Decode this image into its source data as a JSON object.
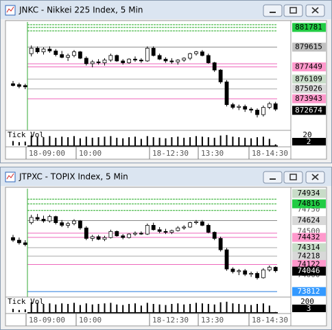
{
  "windows": [
    {
      "title": "JNKC - Nikkei 225 Index, 5 Min",
      "ylim": [
        870475,
        882535
      ],
      "lines": [
        {
          "value": 882080,
          "color": "#22aa22"
        },
        {
          "value": 881781,
          "color": "#22aa22"
        },
        {
          "value": 881400,
          "color": "#22aa22"
        },
        {
          "value": 879615,
          "color": "#888888"
        },
        {
          "value": 877787,
          "color": "#ee66bb"
        },
        {
          "value": 877449,
          "color": "#ee66bb"
        },
        {
          "value": 876109,
          "color": "#aaaaaa"
        },
        {
          "value": 875026,
          "color": "#aaaaaa"
        },
        {
          "value": 873943,
          "color": "#ee66bb"
        }
      ],
      "price_labels": [
        {
          "value": 881781,
          "bg": "#22cc44",
          "fg": "#000000"
        },
        {
          "value": 879615,
          "bg": "#c0c0c0",
          "fg": "#000000"
        },
        {
          "value": 877449,
          "bg": "#ff99cc",
          "fg": "#000000"
        },
        {
          "value": 876109,
          "bg": "#c8dcc8",
          "fg": "#000000"
        },
        {
          "value": 875026,
          "bg": "#d8d8d8",
          "fg": "#000000"
        },
        {
          "value": 873943,
          "bg": "#ff99cc",
          "fg": "#000000"
        },
        {
          "value": 872674,
          "bg": "#000000",
          "fg": "#ffffff"
        }
      ],
      "hidden_labels": [],
      "candles": [
        [
          875600,
          875900,
          875300,
          875400
        ],
        [
          875500,
          875700,
          875100,
          875300
        ],
        [
          875400,
          875600,
          875000,
          875250
        ],
        [
          878900,
          879800,
          878600,
          879500
        ],
        [
          879500,
          879700,
          878900,
          879100
        ],
        [
          879100,
          879600,
          878800,
          879400
        ],
        [
          879400,
          879700,
          879000,
          879200
        ],
        [
          879200,
          879400,
          878600,
          878800
        ],
        [
          878800,
          879200,
          878400,
          878500
        ],
        [
          878500,
          878900,
          878100,
          878700
        ],
        [
          878700,
          879300,
          878500,
          879100
        ],
        [
          879100,
          879200,
          878300,
          878400
        ],
        [
          878400,
          878600,
          877600,
          877800
        ],
        [
          877800,
          878200,
          877400,
          878000
        ],
        [
          878000,
          878300,
          877700,
          877900
        ],
        [
          877900,
          878400,
          877600,
          878200
        ],
        [
          878200,
          878900,
          878000,
          878700
        ],
        [
          878700,
          878800,
          878000,
          878100
        ],
        [
          878100,
          878300,
          877700,
          877900
        ],
        [
          877900,
          878400,
          877800,
          878300
        ],
        [
          878300,
          878600,
          878000,
          878200
        ],
        [
          878200,
          878400,
          877900,
          878100
        ],
        [
          878100,
          879700,
          878000,
          879500
        ],
        [
          879500,
          879700,
          878600,
          878700
        ],
        [
          878700,
          878900,
          878200,
          878300
        ],
        [
          878300,
          878500,
          877900,
          878100
        ],
        [
          878100,
          878400,
          877800,
          878000
        ],
        [
          878000,
          878300,
          877700,
          878200
        ],
        [
          878200,
          878500,
          878000,
          878400
        ],
        [
          878400,
          879000,
          878200,
          878900
        ],
        [
          878900,
          879200,
          878700,
          879100
        ],
        [
          879100,
          879300,
          878600,
          878700
        ],
        [
          878700,
          878900,
          877800,
          877900
        ],
        [
          877900,
          878000,
          876900,
          877100
        ],
        [
          877100,
          877200,
          875600,
          875800
        ],
        [
          875800,
          876000,
          873100,
          873300
        ],
        [
          873300,
          873500,
          872800,
          873000
        ],
        [
          873000,
          873300,
          872700,
          873100
        ],
        [
          873100,
          873300,
          872500,
          872800
        ],
        [
          872800,
          873000,
          872400,
          872700
        ],
        [
          872700,
          872900,
          871900,
          872200
        ],
        [
          872200,
          873200,
          872000,
          873000
        ],
        [
          873000,
          873600,
          872800,
          873400
        ],
        [
          873400,
          873600,
          872600,
          872800
        ]
      ],
      "tick_vol_label": "Tick Vol",
      "volume": [
        8,
        6,
        7,
        18,
        16,
        15,
        17,
        14,
        16,
        15,
        17,
        13,
        16,
        14,
        15,
        16,
        17,
        14,
        13,
        15,
        16,
        12,
        17,
        15,
        14,
        13,
        15,
        16,
        14,
        15,
        17,
        16,
        15,
        14,
        18,
        19,
        16,
        15,
        14,
        13,
        15,
        16,
        12,
        2
      ],
      "vol_labels": [
        20,
        2
      ],
      "times": [
        "18-09:00",
        "10:00",
        "18-12:30",
        "13:30",
        "18-14:30"
      ]
    },
    {
      "title": "JTPXC - TOPIX Index, 5 Min",
      "ylim": [
        73749,
        75005
      ],
      "lines": [
        {
          "value": 74870,
          "color": "#22aa22"
        },
        {
          "value": 74816,
          "color": "#22aa22"
        },
        {
          "value": 74740,
          "color": "#22aa22"
        },
        {
          "value": 74624,
          "color": "#888888"
        },
        {
          "value": 74480,
          "color": "#ee66bb"
        },
        {
          "value": 74432,
          "color": "#ee66bb"
        },
        {
          "value": 74314,
          "color": "#aaaaaa"
        },
        {
          "value": 74218,
          "color": "#aaaaaa"
        },
        {
          "value": 74122,
          "color": "#ee66bb"
        },
        {
          "value": 73812,
          "color": "#2277dd"
        }
      ],
      "price_labels": [
        {
          "value": 74934,
          "bg": "#c8dcc8",
          "fg": "#000000"
        },
        {
          "value": 74816,
          "bg": "#22cc44",
          "fg": "#000000"
        },
        {
          "value": 74624,
          "bg": "#d8d8d8",
          "fg": "#000000"
        },
        {
          "value": 74432,
          "bg": "#ff99cc",
          "fg": "#000000"
        },
        {
          "value": 74314,
          "bg": "#c8dcc8",
          "fg": "#000000"
        },
        {
          "value": 74218,
          "bg": "#d8d8d8",
          "fg": "#000000"
        },
        {
          "value": 74122,
          "bg": "#ff99cc",
          "fg": "#000000"
        },
        {
          "value": 74046,
          "bg": "#000000",
          "fg": "#ffffff"
        },
        {
          "value": 73812,
          "bg": "#3399ff",
          "fg": "#ffffff"
        }
      ],
      "hidden_labels": [
        74750,
        74500,
        74000
      ],
      "candles": [
        [
          74430,
          74460,
          74380,
          74400
        ],
        [
          74400,
          74430,
          74350,
          74370
        ],
        [
          74370,
          74400,
          74330,
          74350
        ],
        [
          74600,
          74690,
          74580,
          74660
        ],
        [
          74660,
          74700,
          74620,
          74640
        ],
        [
          74640,
          74680,
          74600,
          74620
        ],
        [
          74620,
          74690,
          74600,
          74670
        ],
        [
          74670,
          74680,
          74580,
          74600
        ],
        [
          74600,
          74630,
          74550,
          74570
        ],
        [
          74570,
          74610,
          74540,
          74590
        ],
        [
          74590,
          74640,
          74570,
          74620
        ],
        [
          74620,
          74630,
          74520,
          74540
        ],
        [
          74540,
          74560,
          74400,
          74420
        ],
        [
          74420,
          74460,
          74390,
          74440
        ],
        [
          74440,
          74460,
          74400,
          74410
        ],
        [
          74410,
          74450,
          74390,
          74430
        ],
        [
          74430,
          74520,
          74420,
          74500
        ],
        [
          74500,
          74510,
          74440,
          74450
        ],
        [
          74450,
          74470,
          74410,
          74430
        ],
        [
          74430,
          74480,
          74420,
          74470
        ],
        [
          74470,
          74500,
          74450,
          74480
        ],
        [
          74480,
          74500,
          74460,
          74470
        ],
        [
          74470,
          74590,
          74460,
          74570
        ],
        [
          74570,
          74600,
          74510,
          74520
        ],
        [
          74520,
          74550,
          74480,
          74500
        ],
        [
          74500,
          74530,
          74470,
          74490
        ],
        [
          74490,
          74520,
          74470,
          74510
        ],
        [
          74510,
          74560,
          74500,
          74540
        ],
        [
          74540,
          74570,
          74520,
          74550
        ],
        [
          74550,
          74610,
          74540,
          74600
        ],
        [
          74600,
          74630,
          74580,
          74610
        ],
        [
          74610,
          74630,
          74560,
          74570
        ],
        [
          74570,
          74590,
          74480,
          74490
        ],
        [
          74490,
          74500,
          74400,
          74420
        ],
        [
          74420,
          74440,
          74270,
          74290
        ],
        [
          74290,
          74310,
          74050,
          74070
        ],
        [
          74070,
          74090,
          74020,
          74040
        ],
        [
          74040,
          74070,
          74000,
          74050
        ],
        [
          74050,
          74070,
          73990,
          74010
        ],
        [
          74010,
          74040,
          73980,
          74020
        ],
        [
          74020,
          74040,
          73950,
          73970
        ],
        [
          73970,
          74080,
          73960,
          74060
        ],
        [
          74060,
          74110,
          74040,
          74090
        ],
        [
          74090,
          74100,
          74030,
          74050
        ]
      ],
      "tick_vol_label": "Tick Vol",
      "volume": [
        60,
        40,
        50,
        180,
        170,
        150,
        160,
        140,
        160,
        150,
        170,
        130,
        160,
        140,
        150,
        160,
        170,
        140,
        130,
        150,
        160,
        120,
        170,
        150,
        140,
        130,
        150,
        160,
        140,
        150,
        170,
        160,
        150,
        140,
        180,
        190,
        160,
        150,
        140,
        130,
        150,
        160,
        120,
        3
      ],
      "vol_labels": [
        200,
        3
      ],
      "times": [
        "18-09:00",
        "10:00",
        "18-12:30",
        "13:30",
        "18-14:30"
      ]
    }
  ]
}
